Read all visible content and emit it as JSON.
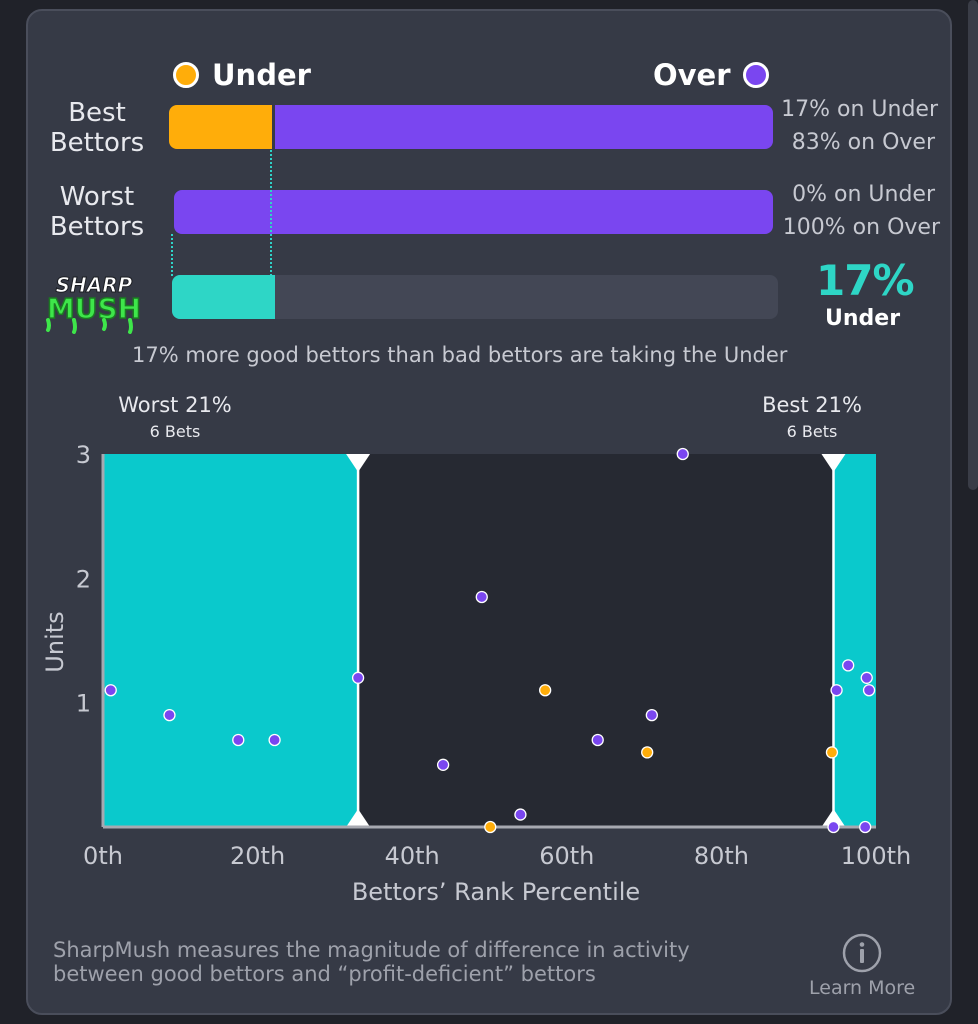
{
  "legend": {
    "under_label": "Under",
    "over_label": "Over",
    "under_color": "#ffad0a",
    "over_color": "#7a46f0"
  },
  "rows": [
    {
      "label_line1": "Best",
      "label_line2": "Bettors",
      "under_pct": 17,
      "over_pct": 83,
      "under_text": "17% on Under",
      "over_text": "83% on Over"
    },
    {
      "label_line1": "Worst",
      "label_line2": "Bettors",
      "under_pct": 0,
      "over_pct": 100,
      "under_text": "0% on Under",
      "over_text": "100% on Over"
    }
  ],
  "sharpmush": {
    "logo_line1": "SHARP",
    "logo_line2": "MUSH",
    "value_pct": 17,
    "value_text": "17%",
    "side_text": "Under",
    "bar_color": "#2ed6c6"
  },
  "summary_text": "17% more good bettors than bad bettors are taking the Under",
  "chart_data": {
    "type": "scatter",
    "xlabel": "Bettors’ Rank Percentile",
    "ylabel": "Units",
    "xlim": [
      0,
      100
    ],
    "ylim": [
      0,
      3
    ],
    "x_ticks": [
      {
        "value": 0,
        "label": "0th"
      },
      {
        "value": 20,
        "label": "20th"
      },
      {
        "value": 40,
        "label": "40th"
      },
      {
        "value": 60,
        "label": "60th"
      },
      {
        "value": 80,
        "label": "80th"
      },
      {
        "value": 100,
        "label": "100th"
      }
    ],
    "y_ticks": [
      {
        "value": 1,
        "label": "1"
      },
      {
        "value": 2,
        "label": "2"
      },
      {
        "value": 3,
        "label": "3"
      }
    ],
    "regions": [
      {
        "name": "worst",
        "title": "Worst 21%",
        "subtitle": "6 Bets",
        "x_start": 0,
        "x_end": 33
      },
      {
        "name": "best",
        "title": "Best 21%",
        "subtitle": "6 Bets",
        "x_start": 94.5,
        "x_end": 100
      }
    ],
    "region_color": "#0ac9cc",
    "series": [
      {
        "name": "Over",
        "color": "#7a46f0",
        "points": [
          {
            "x": 1,
            "y": 1.1
          },
          {
            "x": 8.6,
            "y": 0.9
          },
          {
            "x": 17.5,
            "y": 0.7
          },
          {
            "x": 22.2,
            "y": 0.7
          },
          {
            "x": 33,
            "y": 1.2
          },
          {
            "x": 44,
            "y": 0.5
          },
          {
            "x": 49,
            "y": 1.85
          },
          {
            "x": 54,
            "y": 0.1
          },
          {
            "x": 64,
            "y": 0.7
          },
          {
            "x": 71,
            "y": 0.9
          },
          {
            "x": 75,
            "y": 3.0
          },
          {
            "x": 94.5,
            "y": 0.0
          },
          {
            "x": 94.9,
            "y": 1.1
          },
          {
            "x": 96.4,
            "y": 1.3
          },
          {
            "x": 98.6,
            "y": 0.0
          },
          {
            "x": 98.8,
            "y": 1.2
          },
          {
            "x": 99.1,
            "y": 1.1
          }
        ]
      },
      {
        "name": "Under",
        "color": "#ffad0a",
        "points": [
          {
            "x": 50.1,
            "y": 0.0
          },
          {
            "x": 57.2,
            "y": 1.1
          },
          {
            "x": 70.4,
            "y": 0.6
          },
          {
            "x": 94.3,
            "y": 0.6
          }
        ]
      }
    ]
  },
  "footer": {
    "line1": "SharpMush measures the magnitude of difference in activity",
    "line2": "between good bettors and “profit-deficient” bettors",
    "learn_more": "Learn More",
    "info_icon": "info-icon"
  }
}
